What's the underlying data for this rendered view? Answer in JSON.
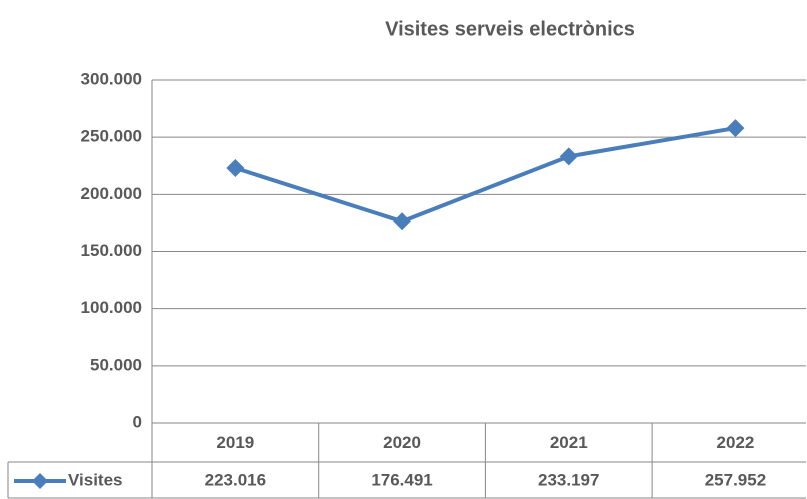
{
  "chart_data": {
    "type": "line",
    "title": "Visites serveis electrònics",
    "categories": [
      "2019",
      "2020",
      "2021",
      "2022"
    ],
    "series": [
      {
        "name": "Visites",
        "color": "#4a7ebb",
        "values": [
          223016,
          176491,
          233197,
          257952
        ],
        "value_labels": [
          "223.016",
          "176.491",
          "233.197",
          "257.952"
        ]
      }
    ],
    "ylim": [
      0,
      300000
    ],
    "yticks": [
      0,
      {
        "value": 50000,
        "label": "50.000"
      },
      {
        "value": 100000,
        "label": "100.000"
      },
      {
        "value": 150000,
        "label": "150.000"
      },
      {
        "value": 200000,
        "label": "200.000"
      },
      {
        "value": 250000,
        "label": "250.000"
      },
      {
        "value": 300000,
        "label": "300.000"
      }
    ],
    "grid": true
  }
}
